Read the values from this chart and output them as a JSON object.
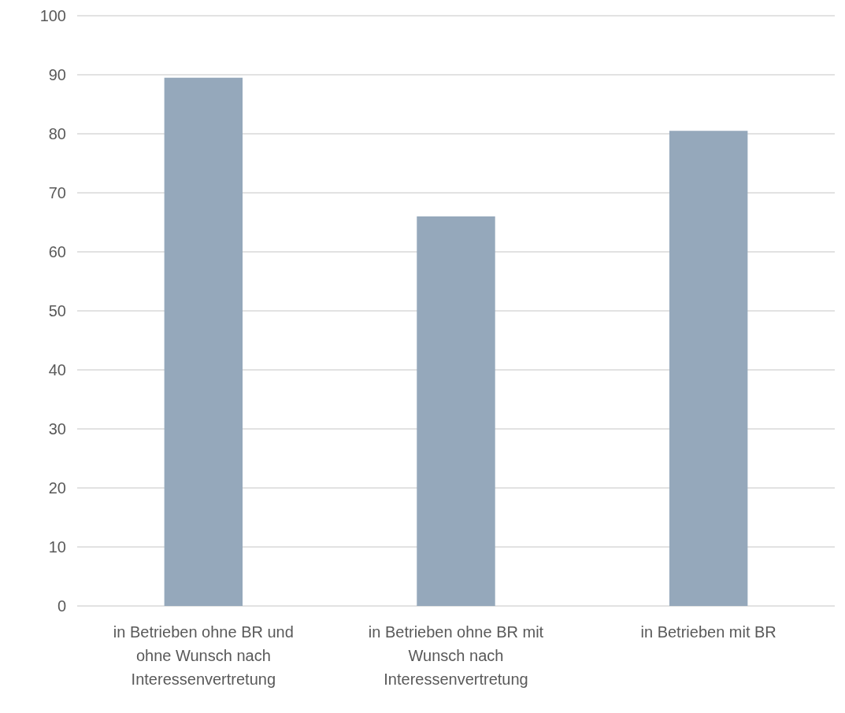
{
  "chart_data": {
    "type": "bar",
    "categories": [
      "in Betrieben ohne BR und ohne Wunsch nach Interessenvertretung",
      "in Betrieben ohne BR mit Wunsch nach Interessenvertretung",
      "in Betrieben mit BR"
    ],
    "values": [
      89.5,
      66,
      80.5
    ],
    "color": "#95a8bb",
    "ylim": [
      0,
      100
    ],
    "yticks": [
      0,
      10,
      20,
      30,
      40,
      50,
      60,
      70,
      80,
      90,
      100
    ],
    "grid": "y"
  }
}
